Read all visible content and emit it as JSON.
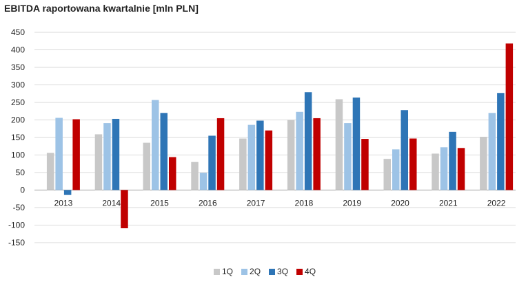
{
  "chart_data": {
    "type": "bar",
    "title": "EBITDA raportowana kwartalnie [mln PLN]",
    "categories": [
      "2013",
      "2014",
      "2015",
      "2016",
      "2017",
      "2018",
      "2019",
      "2020",
      "2021",
      "2022"
    ],
    "series": [
      {
        "name": "1Q",
        "color": "#c8c8c8",
        "values": [
          106,
          159,
          135,
          80,
          147,
          200,
          259,
          89,
          104,
          152
        ]
      },
      {
        "name": "2Q",
        "color": "#9dc3e6",
        "values": [
          206,
          191,
          257,
          49,
          186,
          223,
          191,
          116,
          122,
          220
        ]
      },
      {
        "name": "3Q",
        "color": "#2e75b6",
        "values": [
          -14,
          203,
          220,
          155,
          198,
          279,
          264,
          228,
          166,
          277
        ]
      },
      {
        "name": "4Q",
        "color": "#c00000",
        "values": [
          202,
          -109,
          94,
          205,
          170,
          205,
          146,
          147,
          120,
          418
        ]
      }
    ],
    "ylim": [
      -150,
      450
    ],
    "yticks": [
      -150,
      -100,
      -50,
      0,
      50,
      100,
      150,
      200,
      250,
      300,
      350,
      400,
      450
    ],
    "grid": true,
    "legend": "bottom"
  }
}
